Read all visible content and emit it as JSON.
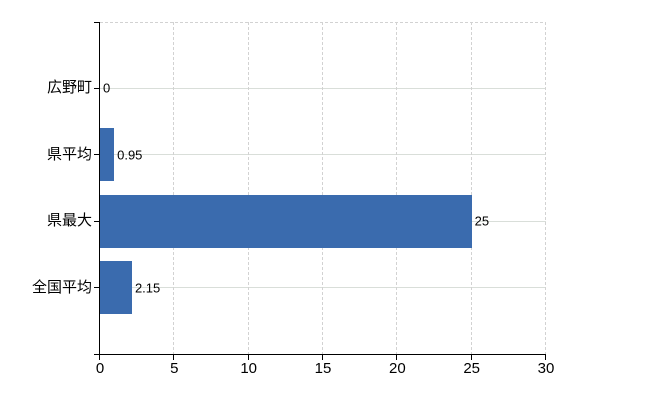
{
  "chart_data": {
    "type": "bar",
    "orientation": "horizontal",
    "title": "",
    "categories": [
      "広野町",
      "県平均",
      "県最大",
      "全国平均"
    ],
    "values": [
      0,
      0.95,
      25,
      2.15
    ],
    "value_labels": [
      "0",
      "0.95",
      "25",
      "2.15"
    ],
    "xlabel": "",
    "ylabel": "",
    "xlim": [
      0,
      30
    ],
    "x_ticks": [
      0,
      5,
      10,
      15,
      20,
      25,
      30
    ],
    "grid": true,
    "legend_position": "none",
    "colors": {
      "bar": "#3a6bae",
      "axis": "#000000",
      "grid_horizontal": "#d9ded9",
      "grid_vertical": "#d2d2d2",
      "plot_border": "#d2d2d2",
      "background": "#ffffff",
      "text": "#000000"
    }
  }
}
